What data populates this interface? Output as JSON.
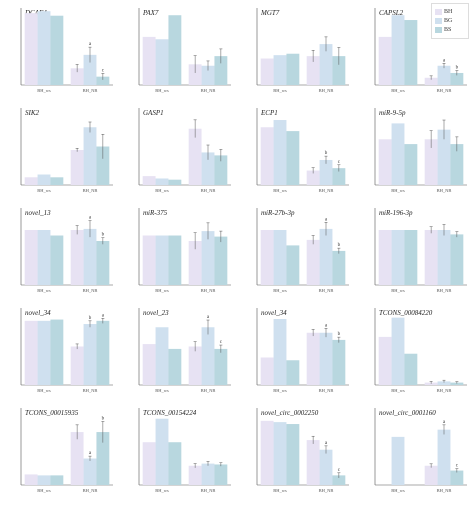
{
  "colors": {
    "S1": "#e7e2f3",
    "S2": "#cfe0ef",
    "S3": "#b8d7df",
    "axis": "#555555",
    "err": "#555555"
  },
  "legend": {
    "items": [
      "BH",
      "BG",
      "BS"
    ]
  },
  "chart_data": [
    {
      "type": "bar",
      "title": "DCAF4",
      "categories": [
        "BH_ws",
        "BH_NB"
      ],
      "series": [
        {
          "name": "BH",
          "values": [
            1.12,
            0.26
          ]
        },
        {
          "name": "BG",
          "values": [
            1.15,
            0.47
          ]
        },
        {
          "name": "BS",
          "values": [
            1.08,
            0.13
          ]
        }
      ],
      "errors": [
        [
          0.0,
          0.06
        ],
        [
          0.0,
          0.12
        ],
        [
          0.0,
          0.05
        ]
      ],
      "sig": [
        [
          "",
          ""
        ],
        [
          "",
          "a"
        ],
        [
          "",
          "c"
        ]
      ],
      "ylim": [
        0,
        1.2
      ]
    },
    {
      "type": "bar",
      "title": "PAX7",
      "categories": [
        "BH_ws",
        "BH_NB"
      ],
      "series": [
        {
          "name": "BH",
          "values": [
            1.0,
            0.43
          ]
        },
        {
          "name": "BG",
          "values": [
            0.95,
            0.4
          ]
        },
        {
          "name": "BS",
          "values": [
            1.45,
            0.6
          ]
        }
      ],
      "errors": [
        [
          0.0,
          0.18
        ],
        [
          0.0,
          0.1
        ],
        [
          0.0,
          0.15
        ]
      ],
      "sig": [
        [
          "",
          ""
        ],
        [
          "",
          ""
        ],
        [
          "",
          ""
        ]
      ],
      "ylim": [
        0,
        1.6
      ]
    },
    {
      "type": "bar",
      "title": "MGT7",
      "categories": [
        "BH_ws",
        "BH_NB"
      ],
      "series": [
        {
          "name": "BH",
          "values": [
            0.55,
            0.6
          ]
        },
        {
          "name": "BG",
          "values": [
            0.62,
            0.85
          ]
        },
        {
          "name": "BS",
          "values": [
            0.65,
            0.6
          ]
        }
      ],
      "errors": [
        [
          0.0,
          0.12
        ],
        [
          0.0,
          0.15
        ],
        [
          0.0,
          0.18
        ]
      ],
      "sig": [
        [
          "",
          ""
        ],
        [
          "",
          ""
        ],
        [
          "",
          ""
        ]
      ],
      "ylim": [
        0,
        1.6
      ]
    },
    {
      "type": "bar",
      "title": "CAPSL2",
      "categories": [
        "BH_ws",
        "BH_NB"
      ],
      "series": [
        {
          "name": "BH",
          "values": [
            1.0,
            0.15
          ]
        },
        {
          "name": "BG",
          "values": [
            1.45,
            0.4
          ]
        },
        {
          "name": "BS",
          "values": [
            1.35,
            0.25
          ]
        }
      ],
      "errors": [
        [
          0.0,
          0.04
        ],
        [
          0.0,
          0.05
        ],
        [
          0.0,
          0.05
        ]
      ],
      "sig": [
        [
          "",
          ""
        ],
        [
          "",
          "a"
        ],
        [
          "",
          "b"
        ]
      ],
      "ylim": [
        0,
        1.6
      ]
    },
    {
      "type": "bar",
      "title": "SIK2",
      "categories": [
        "BH_ws",
        "BH_NB"
      ],
      "series": [
        {
          "name": "BH",
          "values": [
            0.22,
            1.0
          ]
        },
        {
          "name": "BG",
          "values": [
            0.3,
            1.65
          ]
        },
        {
          "name": "BS",
          "values": [
            0.22,
            1.1
          ]
        }
      ],
      "errors": [
        [
          0.0,
          0.05
        ],
        [
          0.0,
          0.15
        ],
        [
          0.0,
          0.35
        ]
      ],
      "sig": [
        [
          "",
          ""
        ],
        [
          "",
          ""
        ],
        [
          "",
          ""
        ]
      ],
      "ylim": [
        0,
        2.2
      ]
    },
    {
      "type": "bar",
      "title": "GASP1",
      "categories": [
        "BH_ws",
        "BH_NB"
      ],
      "series": [
        {
          "name": "BH",
          "values": [
            0.3,
            1.9
          ]
        },
        {
          "name": "BG",
          "values": [
            0.22,
            1.1
          ]
        },
        {
          "name": "BS",
          "values": [
            0.18,
            1.0
          ]
        }
      ],
      "errors": [
        [
          0.0,
          0.3
        ],
        [
          0.0,
          0.25
        ],
        [
          0.0,
          0.2
        ]
      ],
      "sig": [
        [
          "",
          ""
        ],
        [
          "",
          ""
        ],
        [
          "",
          ""
        ]
      ],
      "ylim": [
        0,
        2.6
      ]
    },
    {
      "type": "bar",
      "title": "ECP1",
      "categories": [
        "BH_ws",
        "BH_NB"
      ],
      "series": [
        {
          "name": "BH",
          "values": [
            1.2,
            0.3
          ]
        },
        {
          "name": "BG",
          "values": [
            1.35,
            0.52
          ]
        },
        {
          "name": "BS",
          "values": [
            1.12,
            0.35
          ]
        }
      ],
      "errors": [
        [
          0.0,
          0.06
        ],
        [
          0.0,
          0.08
        ],
        [
          0.0,
          0.07
        ]
      ],
      "sig": [
        [
          "",
          ""
        ],
        [
          "",
          "b"
        ],
        [
          "",
          "c"
        ]
      ],
      "ylim": [
        0,
        1.6
      ]
    },
    {
      "type": "bar",
      "title": "miR-9-5p",
      "categories": [
        "BH_ws",
        "BH_NB"
      ],
      "series": [
        {
          "name": "BH",
          "values": [
            0.95,
            0.95
          ]
        },
        {
          "name": "BG",
          "values": [
            1.28,
            1.15
          ]
        },
        {
          "name": "BS",
          "values": [
            0.85,
            0.85
          ]
        }
      ],
      "errors": [
        [
          0.0,
          0.18
        ],
        [
          0.0,
          0.2
        ],
        [
          0.0,
          0.15
        ]
      ],
      "sig": [
        [
          "",
          ""
        ],
        [
          "",
          ""
        ],
        [
          "",
          ""
        ]
      ],
      "ylim": [
        0,
        1.6
      ]
    },
    {
      "type": "bar",
      "title": "novel_13",
      "categories": [
        "BH_ws",
        "BH_NB"
      ],
      "series": [
        {
          "name": "BH",
          "values": [
            1.0,
            1.0
          ]
        },
        {
          "name": "BG",
          "values": [
            1.0,
            1.02
          ]
        },
        {
          "name": "BS",
          "values": [
            0.9,
            0.8
          ]
        }
      ],
      "errors": [
        [
          0.0,
          0.08
        ],
        [
          0.0,
          0.15
        ],
        [
          0.0,
          0.06
        ]
      ],
      "sig": [
        [
          "",
          ""
        ],
        [
          "",
          "a"
        ],
        [
          "",
          "b"
        ]
      ],
      "ylim": [
        0,
        1.4
      ]
    },
    {
      "type": "bar",
      "title": "miR-375",
      "categories": [
        "BH_ws",
        "BH_NB"
      ],
      "series": [
        {
          "name": "BH",
          "values": [
            0.9,
            0.8
          ]
        },
        {
          "name": "BG",
          "values": [
            0.9,
            0.98
          ]
        },
        {
          "name": "BS",
          "values": [
            0.9,
            0.88
          ]
        }
      ],
      "errors": [
        [
          0.0,
          0.15
        ],
        [
          0.0,
          0.15
        ],
        [
          0.0,
          0.1
        ]
      ],
      "sig": [
        [
          "",
          ""
        ],
        [
          "",
          ""
        ],
        [
          "",
          ""
        ]
      ],
      "ylim": [
        0,
        1.4
      ]
    },
    {
      "type": "bar",
      "title": "miR-27b-3p",
      "categories": [
        "BH_ws",
        "BH_NB"
      ],
      "series": [
        {
          "name": "BH",
          "values": [
            1.0,
            0.82
          ]
        },
        {
          "name": "BG",
          "values": [
            1.0,
            1.02
          ]
        },
        {
          "name": "BS",
          "values": [
            0.72,
            0.62
          ]
        }
      ],
      "errors": [
        [
          0.0,
          0.08
        ],
        [
          0.0,
          0.12
        ],
        [
          0.0,
          0.05
        ]
      ],
      "sig": [
        [
          "",
          ""
        ],
        [
          "",
          "a"
        ],
        [
          "",
          "b"
        ]
      ],
      "ylim": [
        0,
        1.4
      ]
    },
    {
      "type": "bar",
      "title": "miR-196-3p",
      "categories": [
        "BH_ws",
        "BH_NB"
      ],
      "series": [
        {
          "name": "BH",
          "values": [
            1.0,
            1.0
          ]
        },
        {
          "name": "BG",
          "values": [
            1.0,
            1.0
          ]
        },
        {
          "name": "BS",
          "values": [
            1.0,
            0.92
          ]
        }
      ],
      "errors": [
        [
          0.0,
          0.06
        ],
        [
          0.0,
          0.1
        ],
        [
          0.0,
          0.05
        ]
      ],
      "sig": [
        [
          "",
          ""
        ],
        [
          "",
          ""
        ],
        [
          "",
          ""
        ]
      ],
      "ylim": [
        0,
        1.4
      ]
    },
    {
      "type": "bar",
      "title": "novel_34",
      "categories": [
        "BH_ws",
        "BH_NB"
      ],
      "series": [
        {
          "name": "BH",
          "values": [
            1.0,
            0.6
          ]
        },
        {
          "name": "BG",
          "values": [
            1.0,
            0.95
          ]
        },
        {
          "name": "BS",
          "values": [
            1.02,
            1.0
          ]
        }
      ],
      "errors": [
        [
          0.0,
          0.04
        ],
        [
          0.0,
          0.05
        ],
        [
          0.0,
          0.04
        ]
      ],
      "sig": [
        [
          "",
          ""
        ],
        [
          "",
          "b"
        ],
        [
          "",
          "a"
        ]
      ],
      "ylim": [
        0,
        1.2
      ]
    },
    {
      "type": "bar",
      "title": "novel_23",
      "categories": [
        "BH_ws",
        "BH_NB"
      ],
      "series": [
        {
          "name": "BH",
          "values": [
            0.85,
            0.8
          ]
        },
        {
          "name": "BG",
          "values": [
            1.2,
            1.2
          ]
        },
        {
          "name": "BS",
          "values": [
            0.75,
            0.75
          ]
        }
      ],
      "errors": [
        [
          0.0,
          0.1
        ],
        [
          0.0,
          0.15
        ],
        [
          0.0,
          0.08
        ]
      ],
      "sig": [
        [
          "",
          ""
        ],
        [
          "",
          "a"
        ],
        [
          "",
          "c"
        ]
      ],
      "ylim": [
        0,
        1.6
      ]
    },
    {
      "type": "bar",
      "title": "novel_34",
      "categories": [
        "BH_ws",
        "BH_NB"
      ],
      "series": [
        {
          "name": "BH",
          "values": [
            0.5,
            0.95
          ]
        },
        {
          "name": "BG",
          "values": [
            1.2,
            0.95
          ]
        },
        {
          "name": "BS",
          "values": [
            0.45,
            0.82
          ]
        }
      ],
      "errors": [
        [
          0.0,
          0.06
        ],
        [
          0.0,
          0.08
        ],
        [
          0.0,
          0.05
        ]
      ],
      "sig": [
        [
          "",
          ""
        ],
        [
          "",
          "a"
        ],
        [
          "",
          "b"
        ]
      ],
      "ylim": [
        0,
        1.4
      ]
    },
    {
      "type": "bar",
      "title": "TCONS_00084220",
      "categories": [
        "BH_ws",
        "BH_NB"
      ],
      "series": [
        {
          "name": "BH",
          "values": [
            2.0,
            0.1
          ]
        },
        {
          "name": "BG",
          "values": [
            2.8,
            0.15
          ]
        },
        {
          "name": "BS",
          "values": [
            1.3,
            0.1
          ]
        }
      ],
      "errors": [
        [
          0.0,
          0.05
        ],
        [
          0.0,
          0.05
        ],
        [
          0.0,
          0.04
        ]
      ],
      "sig": [
        [
          "",
          ""
        ],
        [
          "",
          ""
        ],
        [
          "",
          ""
        ]
      ],
      "ylim": [
        0,
        3.2
      ]
    },
    {
      "type": "bar",
      "title": "TCONS_00015935",
      "categories": [
        "BH_ws",
        "BH_NB"
      ],
      "series": [
        {
          "name": "BH",
          "values": [
            0.22,
            1.1
          ]
        },
        {
          "name": "BG",
          "values": [
            0.2,
            0.55
          ]
        },
        {
          "name": "BS",
          "values": [
            0.2,
            1.1
          ]
        }
      ],
      "errors": [
        [
          0.0,
          0.15
        ],
        [
          0.0,
          0.05
        ],
        [
          0.0,
          0.22
        ]
      ],
      "sig": [
        [
          "",
          ""
        ],
        [
          "",
          "a"
        ],
        [
          "",
          "b"
        ]
      ],
      "ylim": [
        0,
        1.6
      ]
    },
    {
      "type": "bar",
      "title": "TCONS_00154224",
      "categories": [
        "BH_ws",
        "BH_NB"
      ],
      "series": [
        {
          "name": "BH",
          "values": [
            1.0,
            0.45
          ]
        },
        {
          "name": "BG",
          "values": [
            1.55,
            0.5
          ]
        },
        {
          "name": "BS",
          "values": [
            1.0,
            0.48
          ]
        }
      ],
      "errors": [
        [
          0.0,
          0.05
        ],
        [
          0.0,
          0.05
        ],
        [
          0.0,
          0.04
        ]
      ],
      "sig": [
        [
          "",
          ""
        ],
        [
          "",
          ""
        ],
        [
          "",
          ""
        ]
      ],
      "ylim": [
        0,
        1.8
      ]
    },
    {
      "type": "bar",
      "title": "novel_circ_0002250",
      "categories": [
        "BH_ws",
        "BH_NB"
      ],
      "series": [
        {
          "name": "BH",
          "values": [
            1.0,
            0.7
          ]
        },
        {
          "name": "BG",
          "values": [
            0.98,
            0.55
          ]
        },
        {
          "name": "BS",
          "values": [
            0.95,
            0.15
          ]
        }
      ],
      "errors": [
        [
          0.0,
          0.06
        ],
        [
          0.0,
          0.06
        ],
        [
          0.0,
          0.04
        ]
      ],
      "sig": [
        [
          "",
          ""
        ],
        [
          "",
          "a"
        ],
        [
          "",
          "c"
        ]
      ],
      "ylim": [
        0,
        1.2
      ]
    },
    {
      "type": "bar",
      "title": "novel_circ_0001160",
      "categories": [
        "BH_ws",
        "BH_NB"
      ],
      "series": [
        {
          "name": "BH",
          "values": [
            0.0,
            0.4
          ]
        },
        {
          "name": "BG",
          "values": [
            1.0,
            1.15
          ]
        },
        {
          "name": "BS",
          "values": [
            0.0,
            0.3
          ]
        }
      ],
      "errors": [
        [
          0.0,
          0.04
        ],
        [
          0.0,
          0.1
        ],
        [
          0.0,
          0.04
        ]
      ],
      "sig": [
        [
          "",
          ""
        ],
        [
          "",
          "a"
        ],
        [
          "",
          "c"
        ]
      ],
      "ylim": [
        0,
        1.6
      ]
    }
  ]
}
